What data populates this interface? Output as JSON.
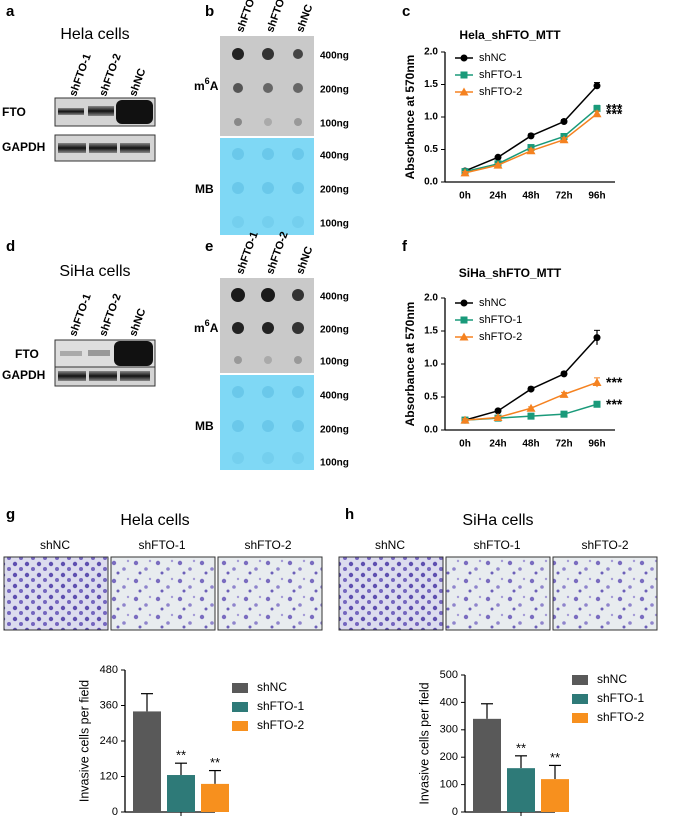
{
  "panels": {
    "letters": [
      "a",
      "b",
      "c",
      "d",
      "e",
      "f",
      "g",
      "h"
    ],
    "hela_heading": "Hela cells",
    "siha_heading": "SiHa cells",
    "blot_lanes": [
      "shFTO-1",
      "shFTO-2",
      "shNC"
    ],
    "blot_rows": [
      "FTO",
      "GAPDH"
    ],
    "dot_lanes": [
      "shFTO-1",
      "shFTO-2",
      "shNC"
    ],
    "m6a": [
      "m",
      "6",
      "A"
    ],
    "mb": "MB",
    "amounts": [
      "400ng",
      "200ng",
      "100ng"
    ],
    "image_labels": [
      "shNC",
      "shFTO-1",
      "shFTO-2"
    ]
  },
  "chart_data": [
    {
      "type": "line",
      "title": "Hela_shFTO_MTT",
      "y_label": "Absorbance at 570nm",
      "categories": [
        "0h",
        "24h",
        "48h",
        "72h",
        "96h"
      ],
      "ylim": [
        0,
        2
      ],
      "yticks": [
        {
          "value": 0,
          "label": "0.0"
        },
        0.5,
        {
          "value": 1,
          "label": "1.0"
        },
        1.5,
        {
          "value": 2,
          "label": "2.0"
        }
      ],
      "series": [
        {
          "name": "shNC",
          "color": "#000000",
          "marker": "circle",
          "values": [
            0.17,
            0.38,
            0.71,
            0.93,
            1.48
          ],
          "errors": [
            0.02,
            0.02,
            0.03,
            0.03,
            0.05
          ]
        },
        {
          "name": "shFTO-1",
          "color": "#1a9a7a",
          "marker": "square",
          "values": [
            0.16,
            0.28,
            0.53,
            0.7,
            1.13
          ],
          "errors": [
            0.02,
            0.02,
            0.03,
            0.03,
            0.05
          ],
          "annotation": "***"
        },
        {
          "name": "shFTO-2",
          "color": "#f58220",
          "marker": "triangle",
          "values": [
            0.14,
            0.26,
            0.48,
            0.65,
            1.05
          ],
          "errors": [
            0.02,
            0.02,
            0.03,
            0.03,
            0.04
          ],
          "annotation": "***"
        }
      ]
    },
    {
      "type": "line",
      "title": "SiHa_shFTO_MTT",
      "y_label": "Absorbance at 570nm",
      "categories": [
        "0h",
        "24h",
        "48h",
        "72h",
        "96h"
      ],
      "ylim": [
        0,
        2
      ],
      "yticks": [
        {
          "value": 0,
          "label": "0.0"
        },
        0.5,
        {
          "value": 1,
          "label": "1.0"
        },
        1.5,
        {
          "value": 2,
          "label": "2.0"
        }
      ],
      "series": [
        {
          "name": "shNC",
          "color": "#000000",
          "marker": "circle",
          "values": [
            0.15,
            0.29,
            0.62,
            0.85,
            1.4
          ],
          "errors": [
            0.02,
            0.02,
            0.03,
            0.03,
            0.11
          ]
        },
        {
          "name": "shFTO-1",
          "color": "#1a9a7a",
          "marker": "square",
          "values": [
            0.15,
            0.18,
            0.21,
            0.24,
            0.39
          ],
          "errors": [
            0.02,
            0.02,
            0.02,
            0.02,
            0.03
          ],
          "annotation": "***"
        },
        {
          "name": "shFTO-2",
          "color": "#f58220",
          "marker": "triangle",
          "values": [
            0.15,
            0.19,
            0.33,
            0.54,
            0.72
          ],
          "errors": [
            0.02,
            0.02,
            0.02,
            0.03,
            0.07
          ],
          "annotation": "***"
        }
      ]
    },
    {
      "type": "bar",
      "y_label": "Invasive cells per field",
      "ylim": [
        0,
        480
      ],
      "yticks": [
        0,
        120,
        240,
        360,
        480
      ],
      "series": [
        {
          "name": "shNC",
          "color": "#595959",
          "values": [
            340
          ],
          "errors": [
            60
          ]
        },
        {
          "name": "shFTO-1",
          "color": "#2e7a78",
          "values": [
            125
          ],
          "errors": [
            40
          ],
          "annotation": "**"
        },
        {
          "name": "shFTO-2",
          "color": "#f7901e",
          "values": [
            95
          ],
          "errors": [
            45
          ],
          "annotation": "**"
        }
      ]
    },
    {
      "type": "bar",
      "y_label": "Invasive cells per field",
      "ylim": [
        0,
        500
      ],
      "yticks": [
        0,
        100,
        200,
        300,
        400,
        500
      ],
      "series": [
        {
          "name": "shNC",
          "color": "#595959",
          "values": [
            340
          ],
          "errors": [
            55
          ]
        },
        {
          "name": "shFTO-1",
          "color": "#2e7a78",
          "values": [
            160
          ],
          "errors": [
            45
          ],
          "annotation": "**"
        },
        {
          "name": "shFTO-2",
          "color": "#f7901e",
          "values": [
            120
          ],
          "errors": [
            50
          ],
          "annotation": "**"
        }
      ]
    }
  ]
}
